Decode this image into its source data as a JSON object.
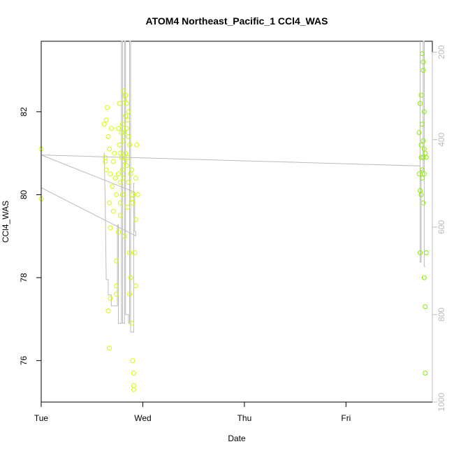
{
  "chart_data": {
    "type": "scatter",
    "title": "ATOM4 Northeast_Pacific_1 CCl4_WAS",
    "xlabel": "Date",
    "ylabel": "CCl4_WAS",
    "x_ticks": [
      "Tue",
      "Wed",
      "Thu",
      "Fri"
    ],
    "y_ticks": [
      76,
      78,
      80,
      82
    ],
    "y2_ticks": [
      200,
      400,
      600,
      800,
      1000
    ],
    "xlim_days": [
      0,
      3.85
    ],
    "ylim": [
      75,
      83.7
    ],
    "y2lim": [
      1000,
      175
    ],
    "x_unit": "days since Tue 00:00",
    "colors": {
      "points_early": "#ccff00",
      "points_late": "#88ee00",
      "line": "#bbbbbb",
      "axis": "#000000",
      "axis2": "#bbbbbb"
    },
    "points": [
      [
        0.0,
        81.1
      ],
      [
        0.0,
        79.9
      ],
      [
        0.62,
        81.7
      ],
      [
        0.63,
        80.9
      ],
      [
        0.63,
        80.8
      ],
      [
        0.64,
        81.8
      ],
      [
        0.65,
        82.1
      ],
      [
        0.64,
        80.6
      ],
      [
        0.66,
        81.4
      ],
      [
        0.67,
        81.1
      ],
      [
        0.68,
        80.5
      ],
      [
        0.69,
        81.6
      ],
      [
        0.67,
        79.8
      ],
      [
        0.68,
        79.2
      ],
      [
        0.66,
        77.2
      ],
      [
        0.67,
        76.3
      ],
      [
        0.68,
        77.5
      ],
      [
        0.7,
        80.2
      ],
      [
        0.71,
        80.8
      ],
      [
        0.71,
        79.6
      ],
      [
        0.72,
        81.0
      ],
      [
        0.73,
        80.4
      ],
      [
        0.74,
        80.0
      ],
      [
        0.74,
        78.4
      ],
      [
        0.74,
        77.8
      ],
      [
        0.74,
        77.6
      ],
      [
        0.76,
        81.6
      ],
      [
        0.76,
        80.5
      ],
      [
        0.76,
        79.1
      ],
      [
        0.77,
        82.2
      ],
      [
        0.77,
        81.2
      ],
      [
        0.78,
        81.0
      ],
      [
        0.78,
        80.3
      ],
      [
        0.78,
        79.8
      ],
      [
        0.78,
        79.5
      ],
      [
        0.79,
        81.5
      ],
      [
        0.79,
        80.9
      ],
      [
        0.8,
        81.7
      ],
      [
        0.8,
        80.6
      ],
      [
        0.8,
        80.0
      ],
      [
        0.81,
        82.5
      ],
      [
        0.81,
        81.3
      ],
      [
        0.81,
        80.4
      ],
      [
        0.82,
        82.3
      ],
      [
        0.82,
        81.5
      ],
      [
        0.82,
        80.8
      ],
      [
        0.82,
        79.0
      ],
      [
        0.83,
        82.4
      ],
      [
        0.83,
        81.9
      ],
      [
        0.83,
        81.0
      ],
      [
        0.84,
        82.2
      ],
      [
        0.84,
        81.6
      ],
      [
        0.84,
        80.7
      ],
      [
        0.85,
        81.8
      ],
      [
        0.85,
        80.9
      ],
      [
        0.85,
        79.7
      ],
      [
        0.86,
        82.0
      ],
      [
        0.86,
        81.4
      ],
      [
        0.86,
        80.3
      ],
      [
        0.87,
        81.2
      ],
      [
        0.87,
        78.6
      ],
      [
        0.87,
        77.6
      ],
      [
        0.88,
        80.5
      ],
      [
        0.88,
        78.0
      ],
      [
        0.89,
        80.6
      ],
      [
        0.89,
        79.9
      ],
      [
        0.89,
        76.9
      ],
      [
        0.9,
        80.0
      ],
      [
        0.9,
        79.8
      ],
      [
        0.9,
        76.0
      ],
      [
        0.91,
        75.4
      ],
      [
        0.91,
        75.7
      ],
      [
        0.91,
        75.3
      ],
      [
        0.92,
        78.6
      ],
      [
        0.93,
        80.4
      ],
      [
        0.93,
        77.8
      ],
      [
        0.93,
        79.4
      ],
      [
        0.94,
        81.2
      ],
      [
        0.95,
        80.0
      ],
      [
        3.72,
        81.5
      ],
      [
        3.72,
        80.5
      ],
      [
        3.73,
        82.2
      ],
      [
        3.73,
        80.1
      ],
      [
        3.73,
        78.6
      ],
      [
        3.74,
        82.4
      ],
      [
        3.74,
        81.2
      ],
      [
        3.74,
        80.9
      ],
      [
        3.74,
        80.0
      ],
      [
        3.75,
        83.4
      ],
      [
        3.75,
        81.7
      ],
      [
        3.75,
        80.6
      ],
      [
        3.75,
        80.4
      ],
      [
        3.76,
        83.2
      ],
      [
        3.76,
        83.0
      ],
      [
        3.76,
        81.3
      ],
      [
        3.76,
        80.9
      ],
      [
        3.76,
        79.8
      ],
      [
        3.77,
        82.0
      ],
      [
        3.77,
        81.1
      ],
      [
        3.77,
        80.5
      ],
      [
        3.77,
        78.0
      ],
      [
        3.78,
        81.0
      ],
      [
        3.78,
        77.3
      ],
      [
        3.78,
        75.7
      ],
      [
        3.79,
        80.9
      ],
      [
        3.79,
        78.6
      ]
    ],
    "line": [
      [
        0.0,
        410
      ],
      [
        0.0,
        510
      ],
      [
        0.93,
        620
      ],
      [
        0.93,
        610
      ],
      [
        0.92,
        610
      ],
      [
        0.92,
        520
      ],
      [
        0.0,
        435
      ],
      [
        3.73,
        460
      ],
      [
        3.73,
        175
      ],
      [
        3.73,
        680
      ],
      [
        3.74,
        680
      ],
      [
        3.74,
        470
      ],
      [
        3.76,
        470
      ],
      [
        3.76,
        175
      ],
      [
        3.77,
        175
      ],
      [
        3.77,
        690
      ],
      [
        3.78,
        690
      ]
    ],
    "line_early_profile": [
      [
        0.62,
        430
      ],
      [
        0.63,
        540
      ],
      [
        0.64,
        720
      ],
      [
        0.66,
        720
      ],
      [
        0.66,
        755
      ],
      [
        0.69,
        755
      ],
      [
        0.69,
        780
      ],
      [
        0.75,
        780
      ],
      [
        0.75,
        595
      ],
      [
        0.76,
        595
      ],
      [
        0.76,
        820
      ],
      [
        0.79,
        820
      ],
      [
        0.79,
        175
      ],
      [
        0.8,
        175
      ],
      [
        0.8,
        820
      ],
      [
        0.82,
        820
      ],
      [
        0.82,
        175
      ],
      [
        0.83,
        175
      ],
      [
        0.83,
        800
      ],
      [
        0.86,
        800
      ],
      [
        0.86,
        820
      ],
      [
        0.87,
        820
      ],
      [
        0.87,
        175
      ],
      [
        0.88,
        175
      ],
      [
        0.88,
        840
      ],
      [
        0.91,
        840
      ],
      [
        0.91,
        500
      ],
      [
        0.92,
        500
      ]
    ]
  }
}
